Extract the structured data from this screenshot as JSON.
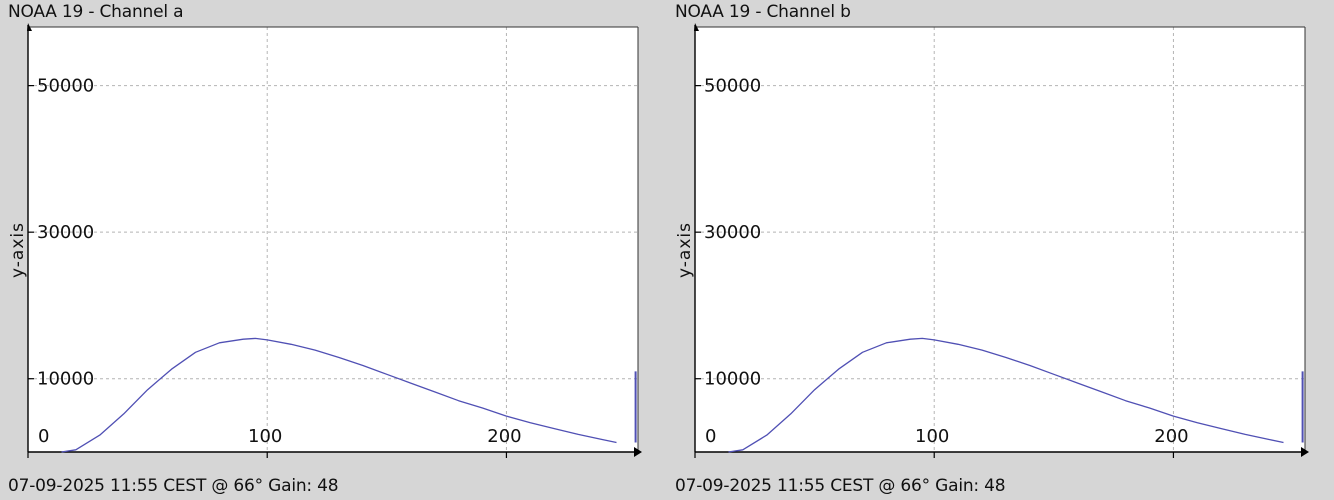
{
  "chart_data": [
    {
      "type": "line",
      "title": "NOAA 19 - Channel a",
      "footer": "07-09-2025 11:55 CEST @ 66° Gain: 48",
      "ylabel": "y-axis",
      "xlabel": "",
      "xlim": [
        0,
        255
      ],
      "ylim": [
        0,
        58000
      ],
      "xticks": [
        0,
        100,
        200
      ],
      "yticks": [
        10000,
        30000,
        50000
      ],
      "grid": true,
      "line_color": "#5050b4",
      "series": [
        {
          "x": [
            14,
            20,
            30,
            40,
            50,
            60,
            70,
            80,
            90,
            95,
            100,
            110,
            120,
            130,
            140,
            150,
            160,
            170,
            180,
            190,
            200,
            210,
            220,
            230,
            240,
            246
          ],
          "y": [
            0,
            300,
            2300,
            5200,
            8500,
            11300,
            13600,
            14900,
            15400,
            15500,
            15300,
            14700,
            13900,
            12900,
            11800,
            10600,
            9400,
            8200,
            7000,
            6000,
            4900,
            4000,
            3200,
            2400,
            1700,
            1300
          ]
        },
        {
          "x": [
            254,
            254
          ],
          "y": [
            1300,
            11000
          ]
        }
      ]
    },
    {
      "type": "line",
      "title": "NOAA 19 - Channel b",
      "footer": "07-09-2025 11:55 CEST @ 66° Gain: 48",
      "ylabel": "y-axis",
      "xlabel": "",
      "xlim": [
        0,
        255
      ],
      "ylim": [
        0,
        58000
      ],
      "xticks": [
        0,
        100,
        200
      ],
      "yticks": [
        10000,
        30000,
        50000
      ],
      "grid": true,
      "line_color": "#5050b4",
      "series": [
        {
          "x": [
            14,
            20,
            30,
            40,
            50,
            60,
            70,
            80,
            90,
            95,
            100,
            110,
            120,
            130,
            140,
            150,
            160,
            170,
            180,
            190,
            200,
            210,
            220,
            230,
            240,
            246
          ],
          "y": [
            0,
            300,
            2300,
            5200,
            8500,
            11300,
            13600,
            14900,
            15400,
            15500,
            15300,
            14700,
            13900,
            12900,
            11800,
            10600,
            9400,
            8200,
            7000,
            6000,
            4900,
            4000,
            3200,
            2400,
            1700,
            1300
          ]
        },
        {
          "x": [
            254,
            254
          ],
          "y": [
            1300,
            11000
          ]
        }
      ]
    }
  ]
}
